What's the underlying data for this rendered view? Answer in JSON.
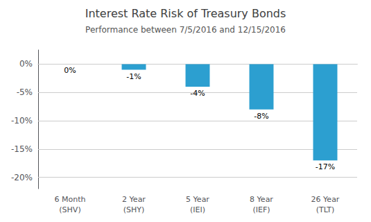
{
  "chart_data": {
    "type": "bar",
    "title": "Interest Rate Risk of Treasury Bonds",
    "subtitle": "Performance between 7/5/2016 and 12/15/2016",
    "categories": [
      "6 Month\n(SHV)",
      "2 Year\n(SHY)",
      "5 Year\n(IEI)",
      "8 Year\n(IEF)",
      "26 Year\n(TLT)"
    ],
    "values": [
      0,
      -1,
      -4,
      -8,
      -17
    ],
    "value_labels": [
      "0%",
      "-1%",
      "-4%",
      "-8%",
      "-17%"
    ],
    "data_labels": true,
    "color": "#2C9FD0",
    "ylim": [
      -22,
      2.5
    ],
    "yticks": [
      {
        "value": 0,
        "label": "0%"
      },
      {
        "value": -5,
        "label": "-5%"
      },
      {
        "value": -10,
        "label": "-10%"
      },
      {
        "value": -15,
        "label": "-15%"
      },
      {
        "value": -20,
        "label": "-20%"
      }
    ],
    "grid": true
  }
}
